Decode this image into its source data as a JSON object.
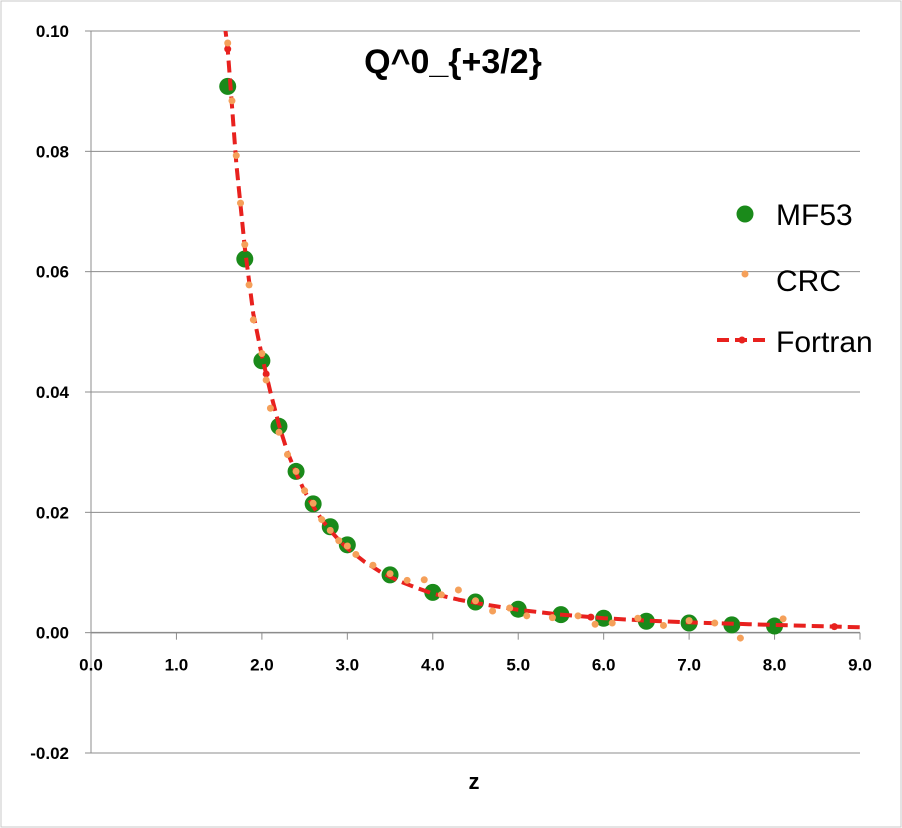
{
  "chart_data": {
    "type": "scatter",
    "title": "Q^0_{+3/2}",
    "xlabel": "z",
    "ylabel": "",
    "xlim": [
      0,
      9
    ],
    "ylim": [
      -0.02,
      0.1
    ],
    "x_ticks": [
      "0.0",
      "1.0",
      "2.0",
      "3.0",
      "4.0",
      "5.0",
      "6.0",
      "7.0",
      "8.0",
      "9.0"
    ],
    "y_ticks": [
      "-0.02",
      "0.00",
      "0.02",
      "0.04",
      "0.06",
      "0.08",
      "0.10"
    ],
    "grid": "horizontal",
    "legend_position": "right",
    "series": [
      {
        "name": "MF53",
        "marker": "large-circle",
        "color": "#1a8a1a",
        "x": [
          1.6,
          1.8,
          2.0,
          2.2,
          2.4,
          2.6,
          2.8,
          3.0,
          3.5,
          4.0,
          4.5,
          5.0,
          5.5,
          6.0,
          6.5,
          7.0,
          7.5,
          8.0
        ],
        "y": [
          0.0908,
          0.0621,
          0.0452,
          0.0343,
          0.0268,
          0.0214,
          0.0176,
          0.0146,
          0.0096,
          0.0067,
          0.0051,
          0.0039,
          0.003,
          0.0024,
          0.0019,
          0.0016,
          0.0013,
          0.0011
        ]
      },
      {
        "name": "CRC",
        "marker": "small-dot",
        "color": "#f5a05a",
        "x": [
          1.6,
          1.65,
          1.7,
          1.75,
          1.8,
          1.85,
          1.9,
          2.0,
          2.05,
          2.1,
          2.2,
          2.3,
          2.4,
          2.5,
          2.6,
          2.7,
          2.8,
          2.9,
          3.0,
          3.1,
          3.3,
          3.5,
          3.7,
          3.9,
          4.1,
          4.3,
          4.5,
          4.7,
          4.9,
          5.1,
          5.4,
          5.7,
          5.9,
          6.1,
          6.4,
          6.7,
          7.0,
          7.3,
          7.6,
          8.1
        ],
        "y": [
          0.098,
          0.0884,
          0.0793,
          0.0714,
          0.0645,
          0.0578,
          0.052,
          0.0464,
          0.042,
          0.0373,
          0.0333,
          0.0296,
          0.0268,
          0.0236,
          0.0215,
          0.0188,
          0.017,
          0.0153,
          0.0144,
          0.013,
          0.0112,
          0.0098,
          0.0087,
          0.0088,
          0.0063,
          0.0071,
          0.0053,
          0.0036,
          0.0041,
          0.0028,
          0.0025,
          0.0028,
          0.0014,
          0.0016,
          0.0024,
          0.0012,
          0.002,
          0.0016,
          -0.0009,
          0.0023
        ]
      },
      {
        "name": "Fortran",
        "marker": "dashed-line-with-dots",
        "color": "#e8211e",
        "x": [
          1.54,
          1.6,
          1.7,
          1.8,
          1.9,
          2.0,
          2.1,
          2.2,
          2.3,
          2.4,
          2.5,
          2.6,
          2.7,
          2.8,
          2.9,
          3.0,
          3.2,
          3.4,
          3.6,
          3.8,
          4.0,
          4.3,
          4.6,
          5.0,
          5.5,
          6.0,
          6.5,
          7.0,
          7.7,
          8.7,
          9.0
        ],
        "y": [
          0.104,
          0.097,
          0.078,
          0.064,
          0.053,
          0.046,
          0.04,
          0.0345,
          0.03,
          0.0265,
          0.0235,
          0.021,
          0.0188,
          0.017,
          0.0154,
          0.014,
          0.0118,
          0.01,
          0.0086,
          0.0075,
          0.0065,
          0.0055,
          0.0047,
          0.0038,
          0.003,
          0.0024,
          0.002,
          0.0017,
          0.0014,
          0.001,
          0.0009
        ]
      }
    ],
    "fortran_dot_x": [
      1.54,
      1.6,
      2.05,
      5.85,
      8.7
    ]
  }
}
